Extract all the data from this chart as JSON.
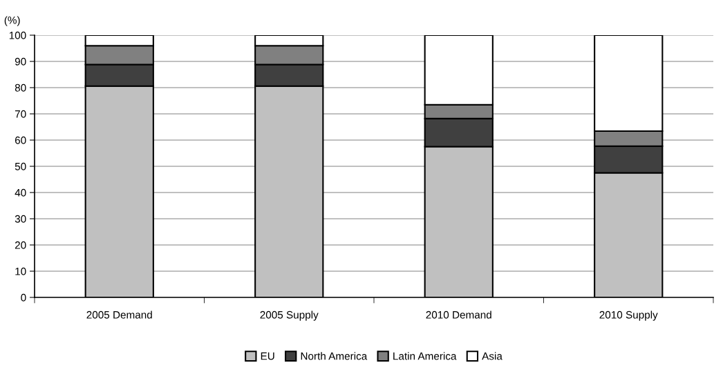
{
  "chart_data": {
    "type": "bar",
    "stacked": true,
    "ylabel": "(%)",
    "categories": [
      "2005 Demand",
      "2005 Supply",
      "2010 Demand",
      "2010 Supply"
    ],
    "series": [
      {
        "name": "EU",
        "color": "#c0c0c0",
        "values": [
          80.6,
          80.6,
          57.5,
          47.5
        ]
      },
      {
        "name": "North America",
        "color": "#404040",
        "values": [
          8.2,
          8.2,
          10.7,
          10.2
        ]
      },
      {
        "name": "Latin America",
        "color": "#808080",
        "values": [
          7.2,
          7.2,
          5.3,
          5.7
        ]
      },
      {
        "name": "Asia",
        "color": "#ffffff",
        "values": [
          4.0,
          4.0,
          26.5,
          36.6
        ]
      }
    ],
    "ylim": [
      0,
      100
    ],
    "yticks": [
      0,
      10,
      20,
      30,
      40,
      50,
      60,
      70,
      80,
      90,
      100
    ],
    "grid": "y",
    "legend": "bottom"
  }
}
